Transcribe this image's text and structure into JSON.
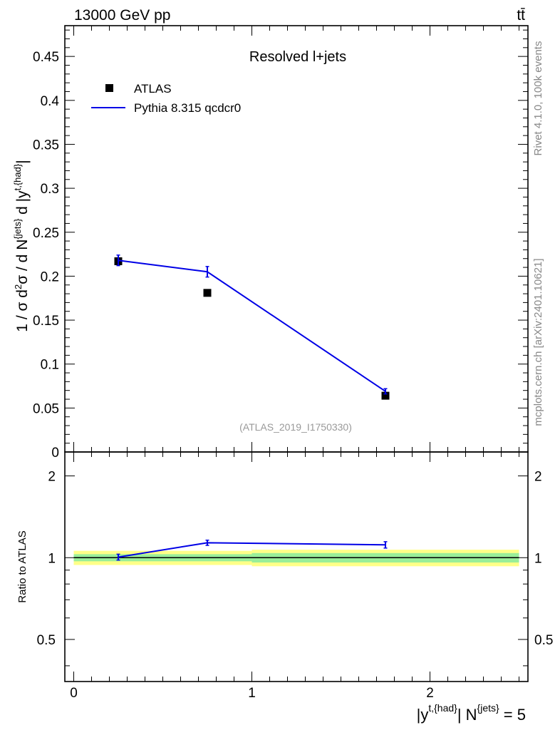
{
  "header": {
    "energy_label": "13000 GeV pp",
    "process_label": "tt̄"
  },
  "side_texts": {
    "rivet": "Rivet 4.1.0,  100k events",
    "mcplots": "mcplots.cern.ch [arXiv:2401.10621]"
  },
  "chart_data": [
    {
      "type": "line",
      "panel": "main",
      "title": "Resolved l+jets",
      "watermark": "(ATLAS_2019_I1750330)",
      "ylabel": "1 / σ d²σ / d N^{jets} d |y^{t,{had}}|",
      "xlim": [
        -0.05,
        2.55
      ],
      "ylim": [
        0,
        0.485
      ],
      "yticks": [
        0,
        0.05,
        0.1,
        0.15,
        0.2,
        0.25,
        0.3,
        0.35,
        0.4,
        0.45
      ],
      "ytick_labels": [
        "0",
        "0.05",
        "0.1",
        "0.15",
        "0.2",
        "0.25",
        "0.3",
        "0.35",
        "0.4",
        "0.45"
      ],
      "legend_position": "top-left",
      "series": [
        {
          "name": "ATLAS",
          "marker": "square",
          "color": "#000000",
          "x": [
            0.25,
            0.75,
            1.75
          ],
          "y": [
            0.217,
            0.181,
            0.064
          ],
          "yerr": [
            0.004,
            0.003,
            0.002
          ]
        },
        {
          "name": "Pythia 8.315 qcdcr0",
          "marker": "line",
          "color": "#0000e6",
          "x": [
            0.25,
            0.75,
            1.75
          ],
          "y": [
            0.218,
            0.205,
            0.069
          ],
          "yerr": [
            0.006,
            0.006,
            0.003
          ]
        }
      ]
    },
    {
      "type": "line",
      "panel": "ratio",
      "ylabel": "Ratio to ATLAS",
      "xlabel": "|y^{t,{had}}| N^{jets} = 5",
      "xlim": [
        -0.05,
        2.55
      ],
      "ylim": [
        0.35,
        2.45
      ],
      "yticks": [
        0.5,
        1,
        2
      ],
      "ytick_labels": [
        "0.5",
        "1",
        "2"
      ],
      "xticks": [
        0,
        1,
        2
      ],
      "xtick_labels": [
        "0",
        "1",
        "2"
      ],
      "band_colors": {
        "inner": "#99ee99",
        "outer": "#ffff88"
      },
      "bands": [
        {
          "x0": 0.0,
          "x1": 1.0,
          "inner": [
            0.97,
            1.03
          ],
          "outer": [
            0.94,
            1.06
          ]
        },
        {
          "x0": 1.0,
          "x1": 2.5,
          "inner": [
            0.96,
            1.04
          ],
          "outer": [
            0.93,
            1.07
          ]
        }
      ],
      "series": [
        {
          "name": "Pythia 8.315 qcdcr0",
          "color": "#0000e6",
          "x": [
            0.25,
            0.75,
            1.75
          ],
          "y": [
            1.005,
            1.135,
            1.115
          ],
          "yerr": [
            0.025,
            0.025,
            0.03
          ]
        }
      ]
    }
  ]
}
